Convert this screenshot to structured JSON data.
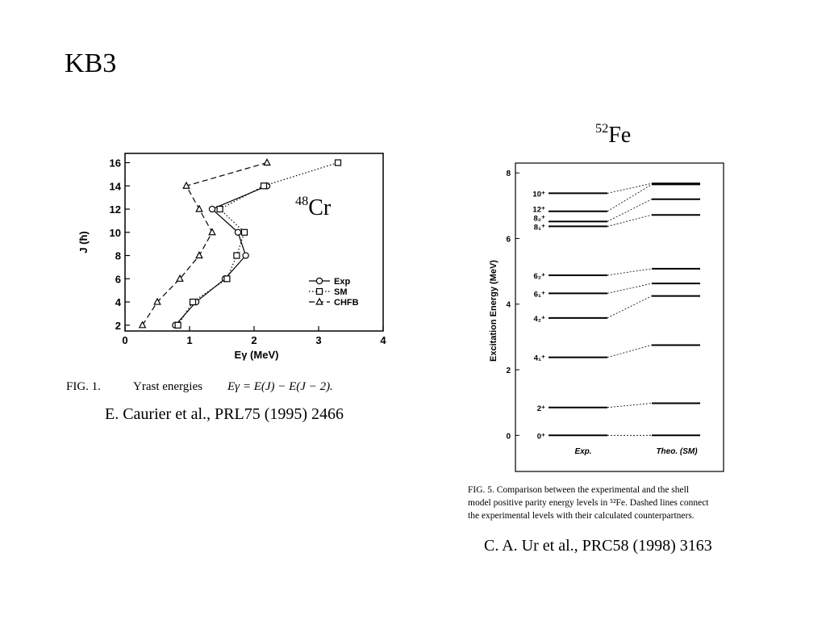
{
  "slide": {
    "title": "KB3",
    "left_isotope_sup": "48",
    "left_isotope_el": "Cr",
    "right_isotope_sup": "52",
    "right_isotope_el": "Fe",
    "left_citation": "E. Caurier et al., PRL75 (1995) 2466",
    "right_citation": "C. A. Ur et al., PRC58 (1998) 3163"
  },
  "chart_data": [
    {
      "type": "line",
      "ylabel": "J (ħ)",
      "xlabel": "Eγ (MeV)",
      "xlim": [
        0,
        4
      ],
      "ylim": [
        1.5,
        16.8
      ],
      "xticks": [
        0,
        1,
        2,
        3,
        4
      ],
      "yticks": [
        2,
        4,
        6,
        8,
        10,
        12,
        14,
        16
      ],
      "legend_position": "right",
      "caption": {
        "fig": "FIG. 1.",
        "text": "Yrast energies",
        "formula": "Eγ = E(J) − E(J − 2)."
      },
      "series": [
        {
          "name": "Exp",
          "marker": "circle",
          "dash": "solid",
          "x": [
            0.78,
            1.1,
            1.55,
            1.87,
            1.75,
            1.35,
            2.2
          ],
          "y": [
            2,
            4,
            6,
            8,
            10,
            12,
            14
          ]
        },
        {
          "name": "SM",
          "marker": "square",
          "dash": "dotted",
          "x": [
            0.82,
            1.05,
            1.58,
            1.73,
            1.85,
            1.47,
            2.15,
            3.3
          ],
          "y": [
            2,
            4,
            6,
            8,
            10,
            12,
            14,
            16
          ]
        },
        {
          "name": "CHFB",
          "marker": "triangle",
          "dash": "dashed",
          "x": [
            0.27,
            0.5,
            0.85,
            1.15,
            1.35,
            1.15,
            0.95,
            2.2
          ],
          "y": [
            2,
            4,
            6,
            8,
            10,
            12,
            14,
            16
          ]
        }
      ]
    },
    {
      "type": "level_scheme",
      "ylabel": "Excitation Energy (MeV)",
      "ylim": [
        -1.1,
        8.3
      ],
      "yticks": [
        0,
        2,
        4,
        6,
        8
      ],
      "columns": [
        "Exp.",
        "Theo. (SM)"
      ],
      "levels": [
        {
          "label": "0⁺",
          "exp": 0.0,
          "theo": 0.0
        },
        {
          "label": "2⁺",
          "exp": 0.85,
          "theo": 0.98
        },
        {
          "label": "4₁⁺",
          "exp": 2.38,
          "theo": 2.75
        },
        {
          "label": "4₂⁺",
          "exp": 3.58,
          "theo": 4.25
        },
        {
          "label": "6₁⁺",
          "exp": 4.33,
          "theo": 4.63
        },
        {
          "label": "6₂⁺",
          "exp": 4.88,
          "theo": 5.08
        },
        {
          "label": "8₁⁺",
          "exp": 6.37,
          "theo": 6.72
        },
        {
          "label": "8₂⁺",
          "exp": 6.52,
          "theo": 7.2
        },
        {
          "label": "12⁺",
          "exp": 6.83,
          "theo": 7.65
        },
        {
          "label": "10⁺",
          "exp": 7.38,
          "theo": 7.68
        }
      ],
      "caption": {
        "line1": "FIG. 5.  Comparison between the experimental and the shell",
        "line2": "model positive parity energy levels in ⁵²Fe. Dashed lines connect",
        "line3": "the experimental levels with their calculated counterpartners."
      }
    }
  ]
}
